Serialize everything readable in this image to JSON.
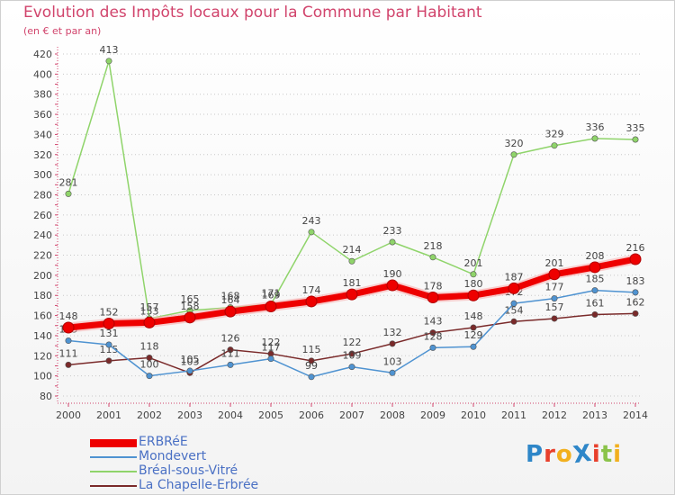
{
  "header": {
    "title": "Evolution des Impôts locaux pour la Commune par Habitant",
    "subtitle": "(en € et par an)"
  },
  "logo": {
    "text": "ProXiti",
    "letters": [
      "P",
      "r",
      "o",
      "X",
      "i",
      "t",
      "i"
    ],
    "colors": [
      "#2e86c8",
      "#e8402c",
      "#f2b01e",
      "#2e86c8",
      "#e8402c",
      "#8bc34a",
      "#f2b01e"
    ]
  },
  "chart_data": {
    "type": "line",
    "title": "Evolution des Impôts locaux pour la Commune par Habitant",
    "subtitle": "(en € et par an)",
    "xlabel": "",
    "ylabel": "",
    "x": [
      2000,
      2001,
      2002,
      2003,
      2004,
      2005,
      2006,
      2007,
      2008,
      2009,
      2010,
      2011,
      2012,
      2013,
      2014
    ],
    "ylim": [
      80,
      420
    ],
    "yticks": [
      80,
      100,
      120,
      140,
      160,
      180,
      200,
      220,
      240,
      260,
      280,
      300,
      320,
      340,
      360,
      380,
      400,
      420
    ],
    "grid": "horizontal-dotted",
    "legend_position": "bottom-left",
    "series": [
      {
        "name": "Bréal-sous-Vitré",
        "color": "#8fd46a",
        "values": [
          281,
          413,
          157,
          165,
          168,
          171,
          243,
          214,
          233,
          218,
          201,
          320,
          329,
          336,
          335
        ]
      },
      {
        "name": "La Chapelle-Erbrée",
        "color": "#7a2a2a",
        "values": [
          111,
          115,
          118,
          103,
          126,
          122,
          115,
          122,
          132,
          143,
          148,
          154,
          157,
          161,
          162
        ]
      },
      {
        "name": "Mondevert",
        "color": "#4f93d1",
        "values": [
          135,
          131,
          100,
          105,
          111,
          117,
          99,
          109,
          103,
          128,
          129,
          172,
          177,
          185,
          183
        ]
      },
      {
        "name": "ERBRéE",
        "color": "#ee0000",
        "values": [
          148,
          152,
          153,
          158,
          164,
          169,
          174,
          181,
          190,
          178,
          180,
          187,
          201,
          208,
          216
        ]
      }
    ],
    "legend_order": [
      "ERBRéE",
      "Mondevert",
      "Bréal-sous-Vitré",
      "La Chapelle-Erbrée"
    ]
  }
}
